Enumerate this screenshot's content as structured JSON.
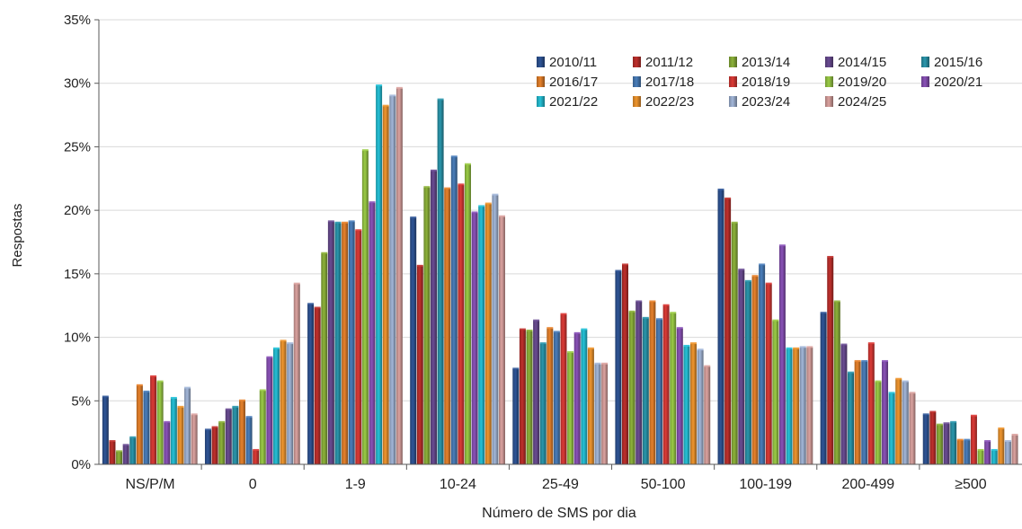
{
  "chart_data": {
    "type": "bar",
    "title": "",
    "xlabel": "Número de SMS por dia",
    "ylabel": "Respostas",
    "ylim": [
      0,
      35
    ],
    "yticks": [
      "0%",
      "5%",
      "10%",
      "15%",
      "20%",
      "25%",
      "30%",
      "35%"
    ],
    "grid": true,
    "legend_position": "top-right",
    "categories": [
      "NS/P/M",
      "0",
      "1-9",
      "10-24",
      "25-49",
      "50-100",
      "100-199",
      "200-499",
      "≥500"
    ],
    "series": [
      {
        "name": "2010/11",
        "color": "#2f5597",
        "values": [
          5.3,
          2.7,
          12.6,
          19.4,
          7.5,
          15.2,
          21.6,
          11.9,
          3.9
        ]
      },
      {
        "name": "2011/12",
        "color": "#c0302c",
        "values": [
          1.8,
          2.9,
          12.3,
          15.6,
          10.6,
          15.7,
          20.9,
          16.3,
          4.1
        ]
      },
      {
        "name": "2013/14",
        "color": "#8db33a",
        "values": [
          1.0,
          3.3,
          16.6,
          21.8,
          10.5,
          12.0,
          19.0,
          12.8,
          3.1
        ]
      },
      {
        "name": "2014/15",
        "color": "#6a4c93",
        "values": [
          1.5,
          4.3,
          19.1,
          23.1,
          11.3,
          12.8,
          15.3,
          9.4,
          3.2
        ]
      },
      {
        "name": "2015/16",
        "color": "#2a97ad",
        "values": [
          2.1,
          4.5,
          19.0,
          28.7,
          9.5,
          11.5,
          14.4,
          7.2,
          3.3
        ]
      },
      {
        "name": "2016/17",
        "color": "#e8822b",
        "values": [
          6.2,
          5.0,
          19.0,
          21.7,
          10.7,
          12.8,
          14.8,
          8.1,
          1.9
        ]
      },
      {
        "name": "2017/18",
        "color": "#4a7ebb",
        "values": [
          5.7,
          3.7,
          19.1,
          24.2,
          10.4,
          11.4,
          15.7,
          8.1,
          1.9
        ]
      },
      {
        "name": "2018/19",
        "color": "#dc3a36",
        "values": [
          6.9,
          1.1,
          18.4,
          22.0,
          11.8,
          12.5,
          14.2,
          9.5,
          3.8
        ]
      },
      {
        "name": "2019/20",
        "color": "#9bcc46",
        "values": [
          6.5,
          5.8,
          24.7,
          23.6,
          8.8,
          11.9,
          11.3,
          6.5,
          1.1
        ]
      },
      {
        "name": "2020/21",
        "color": "#8a52b8",
        "values": [
          3.3,
          8.4,
          20.6,
          19.8,
          10.3,
          10.7,
          17.2,
          8.1,
          1.8
        ]
      },
      {
        "name": "2021/22",
        "color": "#25c2d8",
        "values": [
          5.2,
          9.1,
          29.8,
          20.3,
          10.6,
          9.3,
          9.1,
          5.6,
          1.1
        ]
      },
      {
        "name": "2022/23",
        "color": "#f0962e",
        "values": [
          4.5,
          9.7,
          28.2,
          20.5,
          9.1,
          9.5,
          9.1,
          6.7,
          2.8
        ]
      },
      {
        "name": "2023/24",
        "color": "#a3b7d9",
        "values": [
          6.0,
          9.5,
          29.0,
          21.2,
          7.9,
          9.0,
          9.2,
          6.5,
          1.8
        ]
      },
      {
        "name": "2024/25",
        "color": "#dca3a0",
        "values": [
          3.9,
          14.2,
          29.6,
          19.5,
          7.9,
          7.7,
          9.2,
          5.6,
          2.3
        ]
      }
    ]
  }
}
